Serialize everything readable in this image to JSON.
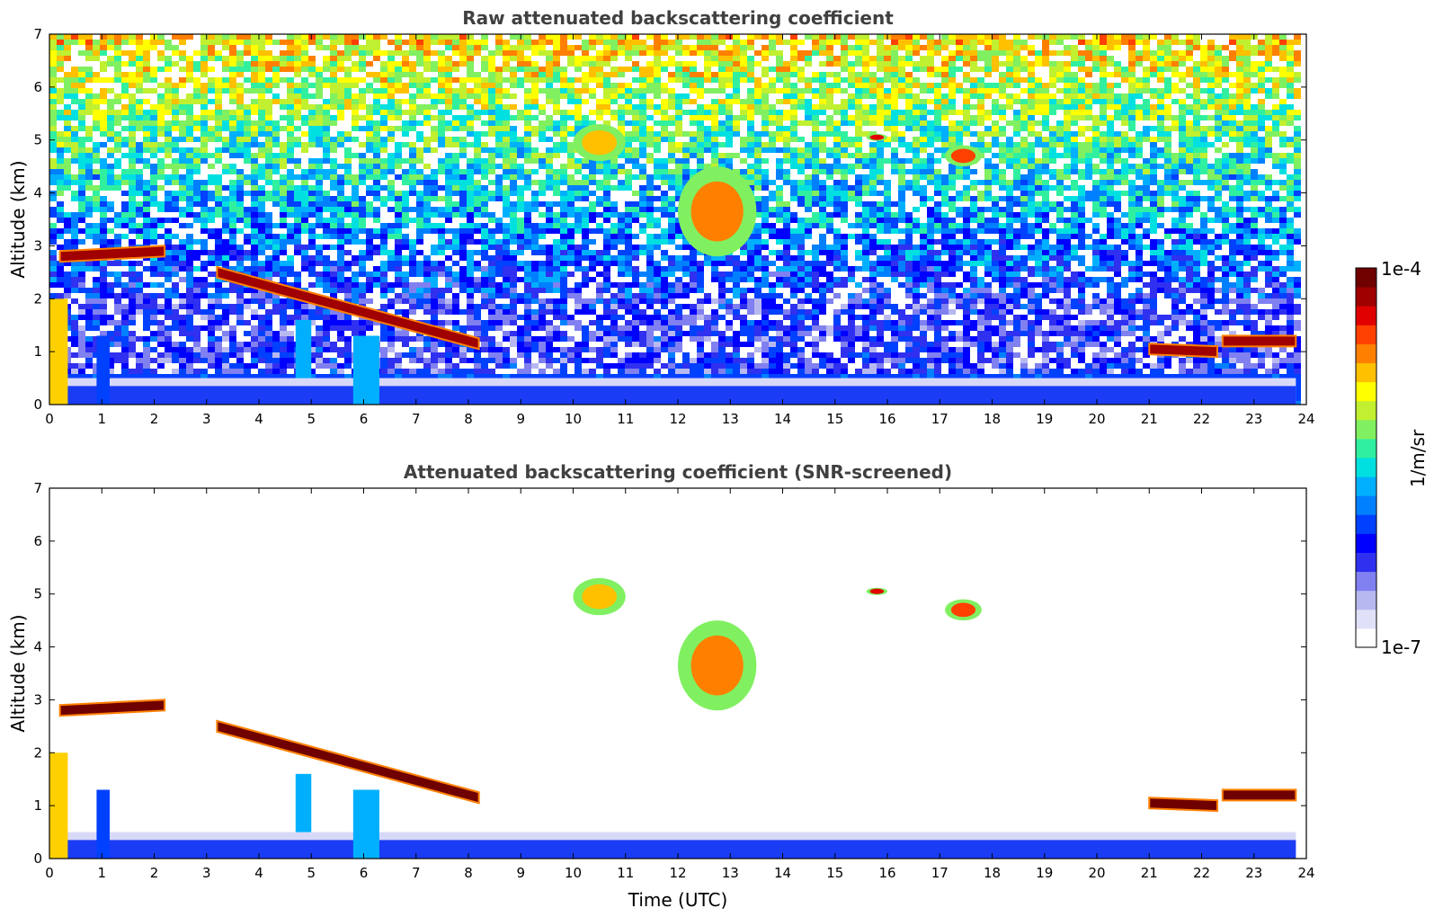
{
  "chart_data": [
    {
      "type": "heatmap",
      "title": "Raw attenuated backscattering coefficient",
      "xlabel": "",
      "ylabel": "Altitude (km)",
      "xlim": [
        0,
        24
      ],
      "ylim": [
        0,
        7
      ],
      "xticks": [
        0,
        1,
        2,
        3,
        4,
        5,
        6,
        7,
        8,
        9,
        10,
        11,
        12,
        13,
        14,
        15,
        16,
        17,
        18,
        19,
        20,
        21,
        22,
        23,
        24
      ],
      "yticks": [
        0,
        1,
        2,
        3,
        4,
        5,
        6,
        7
      ],
      "noise": true,
      "features": [
        {
          "kind": "layer",
          "x": [
            0.2,
            2.2
          ],
          "y": [
            2.8,
            2.9
          ],
          "level": 0.95
        },
        {
          "kind": "layer",
          "x": [
            3.2,
            8.2
          ],
          "y": [
            2.5,
            1.15
          ],
          "level": 0.95
        },
        {
          "kind": "layer",
          "x": [
            21.0,
            22.3
          ],
          "y": [
            1.05,
            1.0
          ],
          "level": 0.95
        },
        {
          "kind": "layer",
          "x": [
            22.4,
            23.8
          ],
          "y": [
            1.2,
            1.2
          ],
          "level": 0.95
        },
        {
          "kind": "cloud",
          "x": [
            10.0,
            11.0
          ],
          "y": [
            4.6,
            5.3
          ],
          "level": 0.75
        },
        {
          "kind": "cloud",
          "x": [
            12.0,
            13.5
          ],
          "y": [
            2.8,
            4.5
          ],
          "level": 0.8
        },
        {
          "kind": "cloud",
          "x": [
            15.6,
            16.0
          ],
          "y": [
            5.0,
            5.1
          ],
          "level": 0.9
        },
        {
          "kind": "cloud",
          "x": [
            17.1,
            17.8
          ],
          "y": [
            4.5,
            4.9
          ],
          "level": 0.85
        }
      ]
    },
    {
      "type": "heatmap",
      "title": "Attenuated backscattering coefficient (SNR-screened)",
      "xlabel": "Time (UTC)",
      "ylabel": "Altitude (km)",
      "xlim": [
        0,
        24
      ],
      "ylim": [
        0,
        7
      ],
      "xticks": [
        0,
        1,
        2,
        3,
        4,
        5,
        6,
        7,
        8,
        9,
        10,
        11,
        12,
        13,
        14,
        15,
        16,
        17,
        18,
        19,
        20,
        21,
        22,
        23,
        24
      ],
      "yticks": [
        0,
        1,
        2,
        3,
        4,
        5,
        6,
        7
      ],
      "noise": false,
      "features": [
        {
          "kind": "layer",
          "x": [
            0.2,
            2.2
          ],
          "y": [
            2.8,
            2.9
          ],
          "level": 1.0
        },
        {
          "kind": "layer",
          "x": [
            3.2,
            8.2
          ],
          "y": [
            2.5,
            1.15
          ],
          "level": 1.0
        },
        {
          "kind": "layer",
          "x": [
            21.0,
            22.3
          ],
          "y": [
            1.05,
            1.0
          ],
          "level": 1.0
        },
        {
          "kind": "layer",
          "x": [
            22.4,
            23.8
          ],
          "y": [
            1.2,
            1.2
          ],
          "level": 1.0
        },
        {
          "kind": "cloud",
          "x": [
            10.0,
            11.0
          ],
          "y": [
            4.6,
            5.3
          ],
          "level": 0.75
        },
        {
          "kind": "cloud",
          "x": [
            12.0,
            13.5
          ],
          "y": [
            2.8,
            4.5
          ],
          "level": 0.8
        },
        {
          "kind": "cloud",
          "x": [
            15.6,
            16.0
          ],
          "y": [
            5.0,
            5.1
          ],
          "level": 0.9
        },
        {
          "kind": "cloud",
          "x": [
            17.1,
            17.8
          ],
          "y": [
            4.5,
            4.9
          ],
          "level": 0.85
        }
      ]
    }
  ],
  "colorbar": {
    "label": "1/m/sr",
    "max_label": "1e-4",
    "min_label": "1e-7",
    "colors": [
      "#ffffff",
      "#e0e0f8",
      "#b8b8f0",
      "#8080f0",
      "#3030f0",
      "#0000ff",
      "#0040ff",
      "#0080ff",
      "#00b0ff",
      "#00e0e0",
      "#30f0a0",
      "#80f060",
      "#c0f030",
      "#ffff00",
      "#ffc000",
      "#ff8000",
      "#ff4000",
      "#e00000",
      "#a00000",
      "#700000"
    ]
  }
}
